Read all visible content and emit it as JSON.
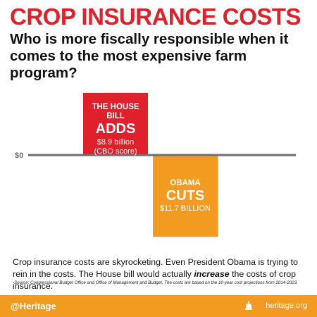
{
  "header": {
    "title": "CROP INSURANCE COSTS",
    "subtitle_part1": "Who is more fiscally responsible when it comes to the ",
    "subtitle_bold": "most expensive",
    "subtitle_part2": " farm program?"
  },
  "chart_data": {
    "type": "bar",
    "categories": [
      "THE HOUSE BILL",
      "OBAMA"
    ],
    "values": [
      8.9,
      -11.7
    ],
    "ylim": [
      -14.3,
      10.8
    ],
    "zero_label": "$0",
    "colors": [
      "#e0202a",
      "#f39a21"
    ],
    "bars": [
      {
        "line1": "THE HOUSE",
        "line2": "BILL",
        "action": "ADDS",
        "amount": "$8.9 billion",
        "note": "(CBO score)"
      },
      {
        "line1": "OBAMA",
        "line2": "",
        "action": "CUTS",
        "amount": "$11.7 BILLION",
        "note": ""
      }
    ]
  },
  "body": {
    "text_part1": "Crop insurance costs are skyrocketing. Even President Obama is trying to rein in the costs. The House bill would actually ",
    "text_emph": "increase",
    "text_part2": " the costs of crop insurance.",
    "source": "Source: Congressional Budget Office and Office of Management and Budget. The costs are based on the 10-year cost projections from 2014-2023."
  },
  "footer": {
    "handle": "@Heritage",
    "site": "heritage.org",
    "icon": "heritage-bell-icon",
    "color": "#f39a21"
  }
}
